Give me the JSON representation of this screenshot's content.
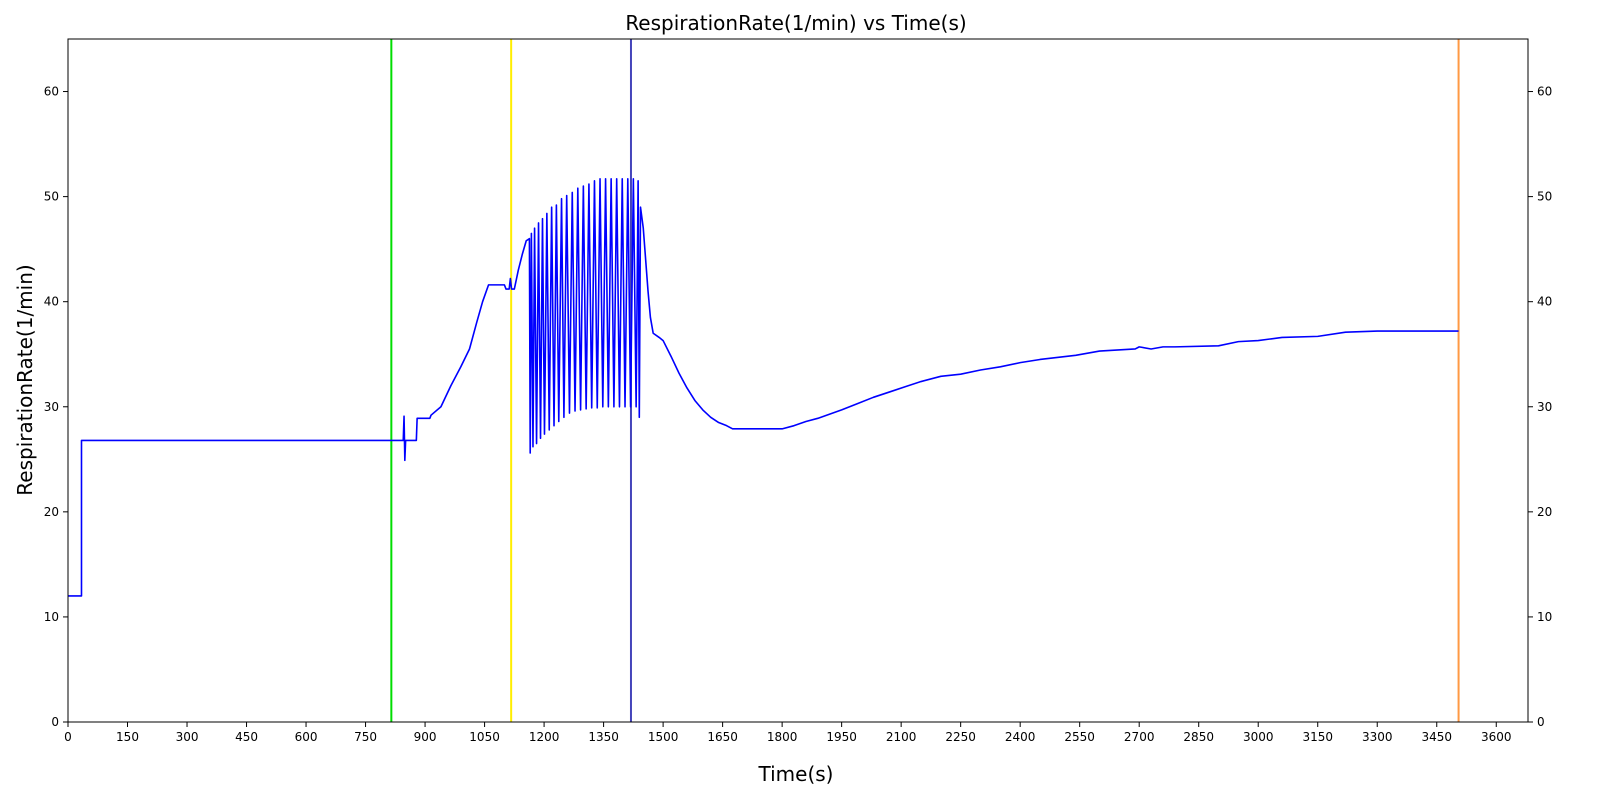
{
  "chart_data": {
    "type": "line",
    "title": "RespirationRate(1/min) vs Time(s)",
    "xlabel": "Time(s)",
    "ylabel": "RespirationRate(1/min)",
    "xlim": [
      0,
      3680
    ],
    "ylim": [
      0,
      65
    ],
    "xticks": [
      0,
      150,
      300,
      450,
      600,
      750,
      900,
      1050,
      1200,
      1350,
      1500,
      1650,
      1800,
      1950,
      2100,
      2250,
      2400,
      2550,
      2700,
      2850,
      3000,
      3150,
      3300,
      3450,
      3600
    ],
    "yticks": [
      0,
      10,
      20,
      30,
      40,
      50,
      60
    ],
    "grid": false,
    "legend": "none",
    "y_ticks_mirrored_right": true,
    "series": [
      {
        "color": "#0000ff",
        "points": [
          [
            0,
            12
          ],
          [
            34,
            12
          ],
          [
            34,
            26.8
          ],
          [
            420,
            26.8
          ],
          [
            816,
            26.8
          ],
          [
            845,
            26.8
          ],
          [
            847,
            29.1
          ],
          [
            849,
            24.9
          ],
          [
            851,
            26.8
          ],
          [
            878,
            26.8
          ],
          [
            880,
            28.9
          ],
          [
            912,
            28.9
          ],
          [
            915,
            29.2
          ],
          [
            940,
            30
          ],
          [
            965,
            32
          ],
          [
            990,
            33.8
          ],
          [
            1012,
            35.5
          ],
          [
            1030,
            38
          ],
          [
            1045,
            40
          ],
          [
            1060,
            41.6
          ],
          [
            1100,
            41.6
          ],
          [
            1104,
            41.2
          ],
          [
            1112,
            41.2
          ],
          [
            1115,
            42.2
          ],
          [
            1118,
            41.2
          ],
          [
            1125,
            41.2
          ],
          [
            1135,
            43
          ],
          [
            1145,
            44.5
          ],
          [
            1155,
            45.8
          ],
          [
            1163,
            46
          ],
          [
            1165,
            25.6
          ],
          [
            1168,
            46.5
          ],
          [
            1172,
            26.2
          ],
          [
            1176,
            47
          ],
          [
            1181,
            26.5
          ],
          [
            1186,
            47.5
          ],
          [
            1191,
            27
          ],
          [
            1196,
            47.9
          ],
          [
            1201,
            27.4
          ],
          [
            1207,
            48.4
          ],
          [
            1213,
            27.8
          ],
          [
            1219,
            49
          ],
          [
            1225,
            28.2
          ],
          [
            1231,
            49.2
          ],
          [
            1237,
            28.6
          ],
          [
            1244,
            49.8
          ],
          [
            1250,
            29
          ],
          [
            1257,
            50.1
          ],
          [
            1264,
            29.4
          ],
          [
            1271,
            50.4
          ],
          [
            1278,
            29.6
          ],
          [
            1285,
            50.8
          ],
          [
            1292,
            29.7
          ],
          [
            1299,
            51
          ],
          [
            1306,
            29.8
          ],
          [
            1313,
            51.2
          ],
          [
            1320,
            29.9
          ],
          [
            1327,
            51.5
          ],
          [
            1334,
            29.9
          ],
          [
            1341,
            51.7
          ],
          [
            1348,
            30
          ],
          [
            1355,
            51.7
          ],
          [
            1362,
            30
          ],
          [
            1369,
            51.7
          ],
          [
            1376,
            30
          ],
          [
            1383,
            51.7
          ],
          [
            1390,
            30
          ],
          [
            1397,
            51.7
          ],
          [
            1404,
            30
          ],
          [
            1411,
            51.7
          ],
          [
            1418,
            30
          ],
          [
            1425,
            51.7
          ],
          [
            1432,
            30
          ],
          [
            1437,
            51.5
          ],
          [
            1440,
            29
          ],
          [
            1443,
            49
          ],
          [
            1450,
            47
          ],
          [
            1456,
            44
          ],
          [
            1462,
            41
          ],
          [
            1468,
            38.5
          ],
          [
            1475,
            37
          ],
          [
            1490,
            36.6
          ],
          [
            1500,
            36.3
          ],
          [
            1520,
            34.8
          ],
          [
            1540,
            33.2
          ],
          [
            1560,
            31.8
          ],
          [
            1580,
            30.6
          ],
          [
            1600,
            29.7
          ],
          [
            1620,
            29
          ],
          [
            1640,
            28.5
          ],
          [
            1660,
            28.2
          ],
          [
            1675,
            27.9
          ],
          [
            1700,
            27.9
          ],
          [
            1800,
            27.9
          ],
          [
            1830,
            28.2
          ],
          [
            1860,
            28.6
          ],
          [
            1890,
            28.9
          ],
          [
            1920,
            29.3
          ],
          [
            1950,
            29.7
          ],
          [
            1990,
            30.3
          ],
          [
            2030,
            30.9
          ],
          [
            2070,
            31.4
          ],
          [
            2110,
            31.9
          ],
          [
            2150,
            32.4
          ],
          [
            2200,
            32.9
          ],
          [
            2250,
            33.1
          ],
          [
            2300,
            33.5
          ],
          [
            2350,
            33.8
          ],
          [
            2400,
            34.2
          ],
          [
            2450,
            34.5
          ],
          [
            2540,
            34.9
          ],
          [
            2600,
            35.3
          ],
          [
            2690,
            35.5
          ],
          [
            2700,
            35.7
          ],
          [
            2730,
            35.5
          ],
          [
            2760,
            35.7
          ],
          [
            2790,
            35.7
          ],
          [
            2900,
            35.8
          ],
          [
            2950,
            36.2
          ],
          [
            3000,
            36.3
          ],
          [
            3060,
            36.6
          ],
          [
            3150,
            36.7
          ],
          [
            3220,
            37.1
          ],
          [
            3300,
            37.2
          ],
          [
            3400,
            37.2
          ],
          [
            3505,
            37.2
          ]
        ]
      }
    ],
    "vertical_lines": [
      {
        "x": 815,
        "color": "#00dd00"
      },
      {
        "x": 1117,
        "color": "#ffee00"
      },
      {
        "x": 1419,
        "color": "#4444bb"
      },
      {
        "x": 3505,
        "color": "#ff9944"
      }
    ]
  }
}
